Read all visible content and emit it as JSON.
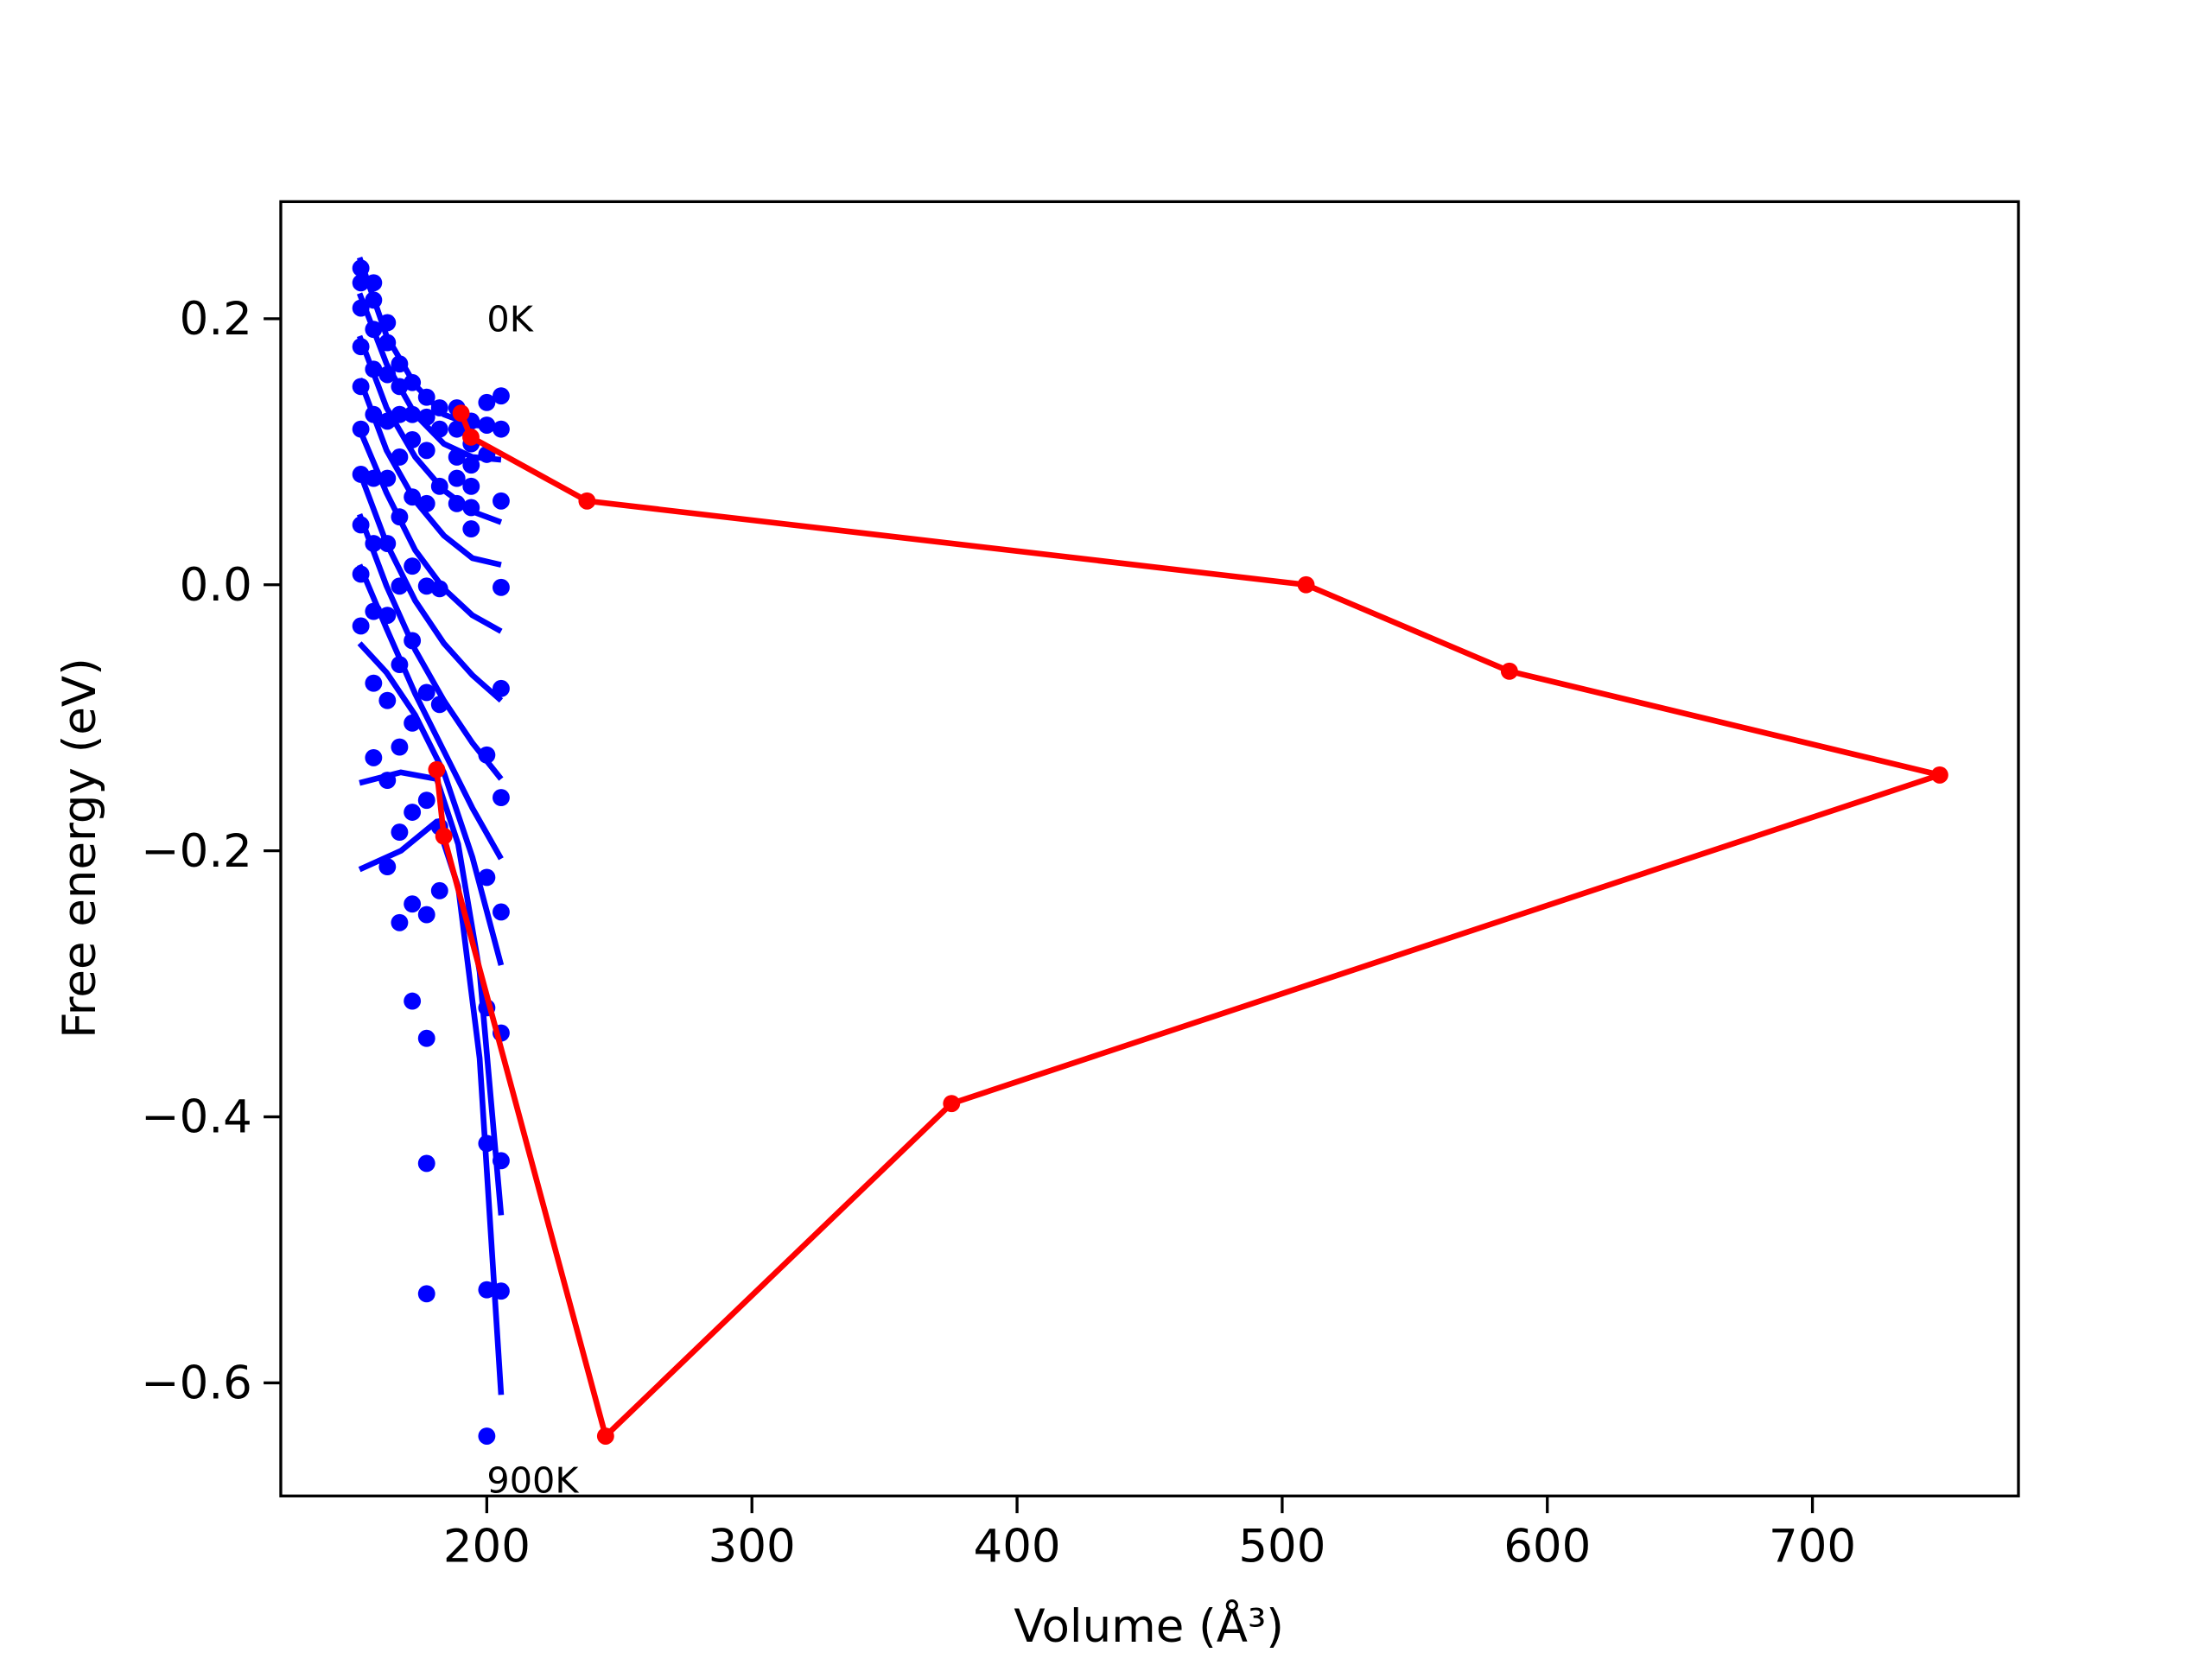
{
  "chart_data": {
    "type": "line",
    "xlabel": "Volume (Å³)",
    "ylabel": "Free energy (eV)",
    "xlim": [
      122.3,
      777.7
    ],
    "ylim": [
      -0.685,
      0.288
    ],
    "xticks": [
      200,
      300,
      400,
      500,
      600,
      700
    ],
    "yticks": [
      {
        "value": -0.6,
        "label": "−0.6"
      },
      {
        "value": -0.4,
        "label": "−0.4"
      },
      {
        "value": -0.2,
        "label": "−0.2"
      },
      {
        "value": 0,
        "label": "0.0"
      },
      0.2
    ],
    "annotations": [
      {
        "text": "0K",
        "x": 200,
        "y": 0.2
      },
      {
        "text": "900K",
        "x": 200,
        "y": -0.673
      }
    ],
    "series": [
      {
        "color": "#0000ff",
        "line": false,
        "marker": true,
        "x": [
          152.5,
          152.5,
          152.5,
          152.5,
          152.5,
          152.5,
          152.5,
          152.5,
          152.5,
          152.5,
          157.3,
          157.3,
          157.3,
          157.3,
          157.3,
          157.3,
          157.3,
          157.3,
          157.3,
          157.3,
          162.5,
          162.5,
          162.5,
          162.5,
          162.5,
          162.5,
          162.5,
          162.5,
          162.5,
          162.5,
          167.1,
          167.1,
          167.1,
          167.1,
          167.1,
          167.1,
          167.1,
          167.1,
          167.1,
          167.1,
          171.9,
          171.9,
          171.9,
          171.9,
          171.9,
          171.9,
          171.9,
          171.9,
          171.9,
          171.9,
          177.3,
          177.3,
          177.3,
          177.3,
          177.3,
          177.3,
          177.3,
          177.3,
          177.3,
          177.3,
          177.3,
          182.2,
          182.2,
          182.2,
          182.2,
          182.2,
          182.2,
          182.2,
          188.7,
          188.7,
          188.7,
          188.7,
          188.7,
          194.1,
          194.1,
          194.1,
          194.1,
          194.1,
          194.1,
          200,
          200,
          200,
          200,
          200,
          200,
          200,
          200,
          200,
          205.4,
          205.4,
          205.4,
          205.4,
          205.4,
          205.4,
          205.4,
          205.4,
          205.4,
          205.4
        ],
        "values": [
          0.238,
          0.227,
          0.208,
          0.179,
          0.149,
          0.117,
          0.083,
          0.045,
          0.008,
          -0.031,
          0.227,
          0.214,
          0.192,
          0.162,
          0.128,
          0.08,
          0.031,
          -0.02,
          -0.074,
          -0.13,
          0.197,
          0.182,
          0.158,
          0.123,
          0.08,
          0.031,
          -0.023,
          -0.087,
          -0.147,
          -0.212,
          0.166,
          0.149,
          0.128,
          0.096,
          0.051,
          -0.001,
          -0.06,
          -0.122,
          -0.186,
          -0.254,
          0.152,
          0.128,
          0.109,
          0.066,
          0.014,
          -0.042,
          -0.104,
          -0.171,
          -0.24,
          -0.313,
          0.141,
          0.126,
          0.101,
          0.061,
          -0.001,
          -0.081,
          -0.162,
          -0.248,
          -0.341,
          -0.435,
          -0.533,
          0.133,
          0.117,
          0.074,
          -0.003,
          -0.09,
          -0.182,
          -0.23,
          0.133,
          0.117,
          0.096,
          0.08,
          0.061,
          0.123,
          0.106,
          0.09,
          0.074,
          0.058,
          0.042,
          0.137,
          0.12,
          0.098,
          -0.128,
          -0.22,
          -0.318,
          -0.42,
          -0.53,
          -0.64,
          0.142,
          0.117,
          0.063,
          -0.002,
          -0.078,
          -0.16,
          -0.246,
          -0.337,
          -0.433,
          -0.531
        ]
      },
      {
        "color": "#0000ff",
        "line": true,
        "marker": false,
        "x": [
          152.0,
          162.2,
          173.0,
          183.8,
          194.6,
          205.4
        ],
        "values": [
          0.246,
          0.187,
          0.15,
          0.128,
          0.12,
          0.119
        ]
      },
      {
        "color": "#0000ff",
        "line": true,
        "marker": false,
        "x": [
          152.0,
          162.2,
          173.0,
          183.8,
          194.6,
          205.4
        ],
        "values": [
          0.219,
          0.166,
          0.128,
          0.106,
          0.096,
          0.094
        ]
      },
      {
        "color": "#0000ff",
        "line": true,
        "marker": false,
        "x": [
          152.0,
          162.2,
          173.0,
          183.8,
          194.6,
          205.4
        ],
        "values": [
          0.187,
          0.133,
          0.096,
          0.071,
          0.055,
          0.047
        ]
      },
      {
        "color": "#0000ff",
        "line": true,
        "marker": false,
        "x": [
          152.0,
          162.2,
          173.0,
          183.8,
          194.6,
          205.4
        ],
        "values": [
          0.155,
          0.101,
          0.063,
          0.037,
          0.02,
          0.015
        ]
      },
      {
        "color": "#0000ff",
        "line": true,
        "marker": false,
        "x": [
          152.0,
          162.2,
          173.0,
          183.8,
          194.6,
          205.4
        ],
        "values": [
          0.117,
          0.069,
          0.026,
          -0.003,
          -0.023,
          -0.035
        ]
      },
      {
        "color": "#0000ff",
        "line": true,
        "marker": false,
        "x": [
          152.0,
          162.2,
          173.0,
          183.8,
          194.6,
          205.4
        ],
        "values": [
          0.085,
          0.031,
          -0.012,
          -0.044,
          -0.068,
          -0.087
        ]
      },
      {
        "color": "#0000ff",
        "line": true,
        "marker": false,
        "x": [
          152.0,
          162.2,
          173.0,
          183.8,
          194.6,
          205.4
        ],
        "values": [
          0.053,
          -0.001,
          -0.049,
          -0.087,
          -0.119,
          -0.146
        ]
      },
      {
        "color": "#0000ff",
        "line": true,
        "marker": false,
        "x": [
          152.0,
          162.2,
          173.0,
          183.8,
          194.6,
          205.4
        ],
        "values": [
          0.015,
          -0.033,
          -0.082,
          -0.125,
          -0.168,
          -0.206
        ]
      },
      {
        "color": "#0000ff",
        "line": true,
        "marker": false,
        "x": [
          152.0,
          162.2,
          173.0,
          183.8,
          194.6,
          205.4
        ],
        "values": [
          -0.044,
          -0.066,
          -0.098,
          -0.141,
          -0.205,
          -0.286
        ]
      },
      {
        "color": "#0000ff",
        "line": true,
        "marker": false,
        "x": [
          152.0,
          167.6,
          181.1,
          189.2,
          197.3,
          205.4
        ],
        "values": [
          -0.149,
          -0.141,
          -0.146,
          -0.195,
          -0.291,
          -0.474
        ]
      },
      {
        "color": "#0000ff",
        "line": true,
        "marker": false,
        "x": [
          152.0,
          167.6,
          181.1,
          189.2,
          197.3,
          205.4
        ],
        "values": [
          -0.214,
          -0.2,
          -0.178,
          -0.227,
          -0.356,
          -0.609
        ]
      },
      {
        "color": "#ff0000",
        "line": true,
        "marker": true,
        "x": [
          190.3,
          194.0,
          237.8,
          509.0,
          585.7,
          748.0,
          375.3,
          244.8,
          183.8,
          181.1
        ],
        "values": [
          0.129,
          0.111,
          0.063,
          0.0,
          -0.065,
          -0.143,
          -0.39,
          -0.64,
          -0.189,
          -0.139
        ]
      }
    ]
  }
}
